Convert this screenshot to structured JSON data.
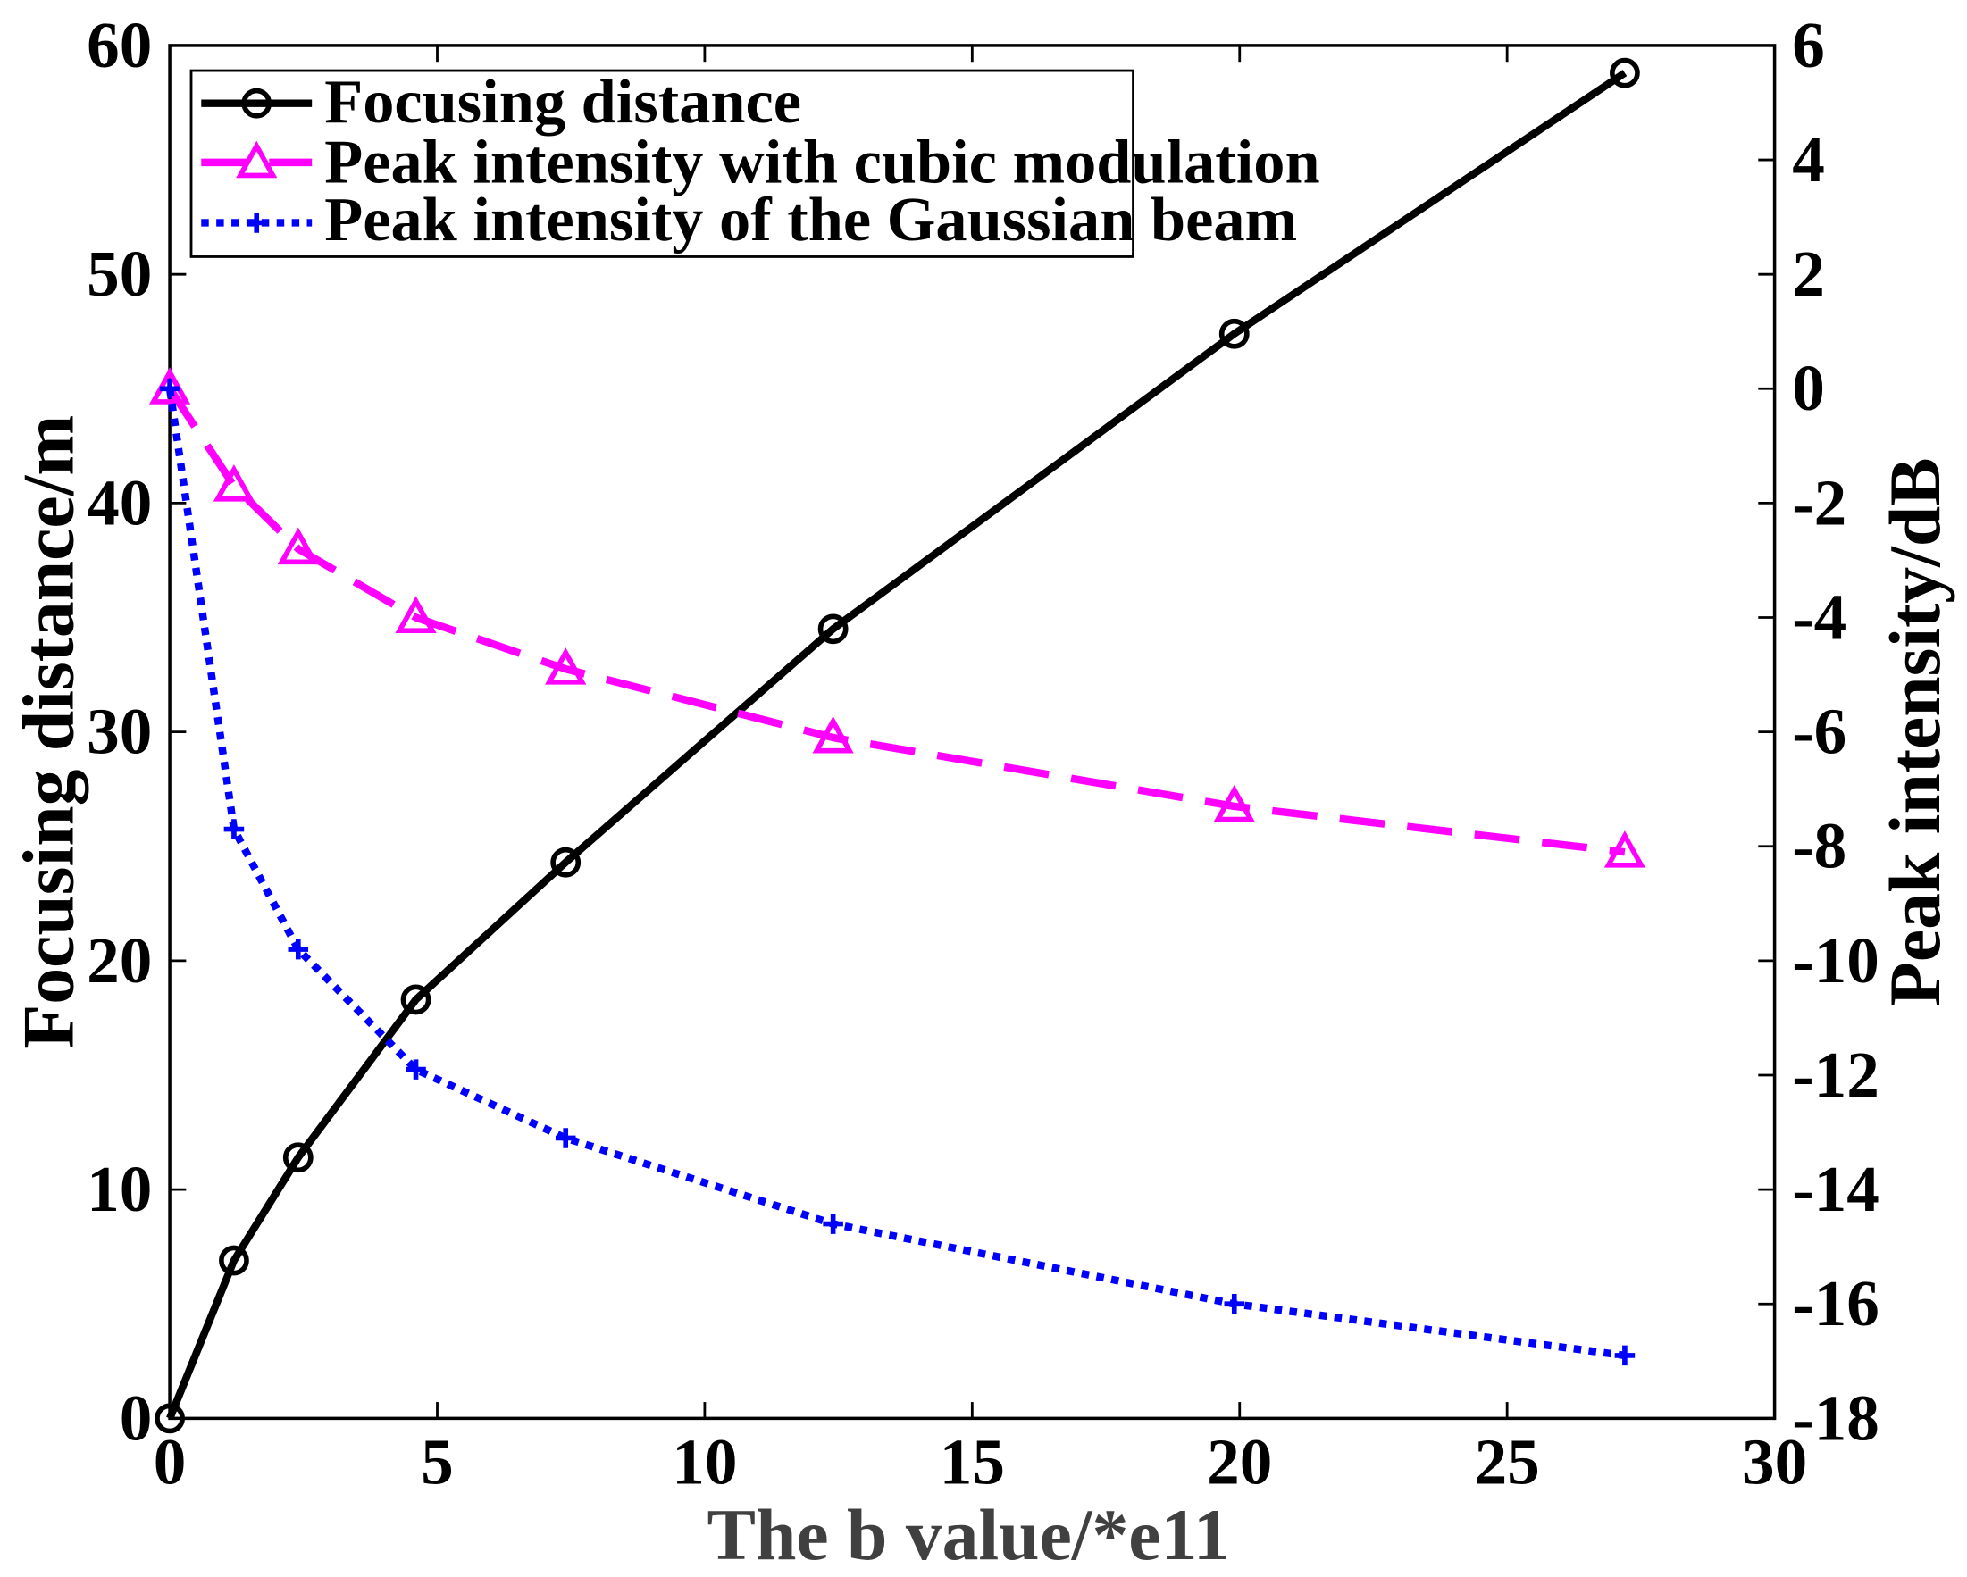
{
  "chart_data": {
    "type": "line",
    "title": "",
    "xlabel": "The b value/*e11",
    "ylabel_left": "Focusing distance/m",
    "ylabel_right": "Peak intensity/dB",
    "xlim": [
      0,
      30
    ],
    "ylim_left": [
      0,
      60
    ],
    "ylim_right": [
      -18,
      6
    ],
    "x_ticks": [
      "0",
      "5",
      "10",
      "15",
      "20",
      "25",
      "30"
    ],
    "y_left_ticks": [
      "0",
      "10",
      "20",
      "30",
      "40",
      "50",
      "60"
    ],
    "y_right_ticks": [
      "-18",
      "-16",
      "-14",
      "-12",
      "-10",
      "-8",
      "-6",
      "-4",
      "-2",
      "0",
      "2",
      "4",
      "6"
    ],
    "grid": false,
    "legend_position": "top-left",
    "series": [
      {
        "name": "Focusing distance",
        "axis": "left",
        "color": "#000000",
        "style": "solid",
        "marker": "circle",
        "x": [
          0,
          1.2,
          2.4,
          4.6,
          7.4,
          12.4,
          19.9,
          27.2
        ],
        "y": [
          0,
          6.9,
          11.4,
          18.3,
          24.3,
          34.5,
          47.4,
          58.8
        ]
      },
      {
        "name": "Peak intensity with cubic modulation",
        "axis": "right",
        "color": "#ff00ff",
        "style": "dashed",
        "marker": "triangle",
        "x": [
          0,
          1.2,
          2.4,
          4.6,
          7.4,
          12.4,
          19.9,
          27.2
        ],
        "y": [
          0,
          -1.7,
          -2.8,
          -4.0,
          -4.9,
          -6.1,
          -7.3,
          -8.1
        ]
      },
      {
        "name": "Peak intensity of the Gaussian beam",
        "axis": "right",
        "color": "#0000ff",
        "style": "dotted",
        "marker": "plus",
        "x": [
          0,
          1.2,
          2.4,
          4.6,
          7.4,
          12.4,
          19.9,
          27.2
        ],
        "y": [
          0,
          -7.7,
          -9.8,
          -11.9,
          -13.1,
          -14.6,
          -16.0,
          -16.9
        ]
      }
    ]
  }
}
